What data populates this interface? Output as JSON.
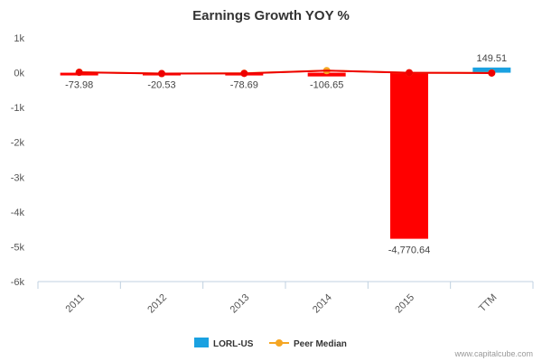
{
  "chart_data": {
    "type": "bar",
    "title": "Earnings Growth YOY %",
    "categories": [
      "2011",
      "2012",
      "2013",
      "2014",
      "2015",
      "TTM"
    ],
    "y_ticks": [
      "1k",
      "0k",
      "-1k",
      "-2k",
      "-3k",
      "-4k",
      "-5k",
      "-6k"
    ],
    "ylim": [
      -6000,
      1000
    ],
    "grid": false,
    "legend_position": "bottom-center",
    "series": [
      {
        "name": "LORL-US",
        "type": "bar",
        "values": [
          -73.98,
          -20.53,
          -78.69,
          -106.65,
          -4770.64,
          149.51
        ],
        "data_labels": [
          "-73.98",
          "-20.53",
          "-78.69",
          "-106.65",
          "-4,770.64",
          "149.51"
        ],
        "negative_color": "#ff0000",
        "positive_color": "#1aa1e1"
      },
      {
        "name": "Peer Median",
        "type": "line",
        "values": [
          15,
          -25,
          -15,
          60,
          0,
          -5
        ],
        "color": "#f5a623"
      }
    ],
    "trend_line": {
      "values": [
        10,
        -25,
        -20,
        60,
        0,
        -10
      ],
      "color": "#ee0000"
    }
  },
  "credit": "www.capitalcube.com"
}
